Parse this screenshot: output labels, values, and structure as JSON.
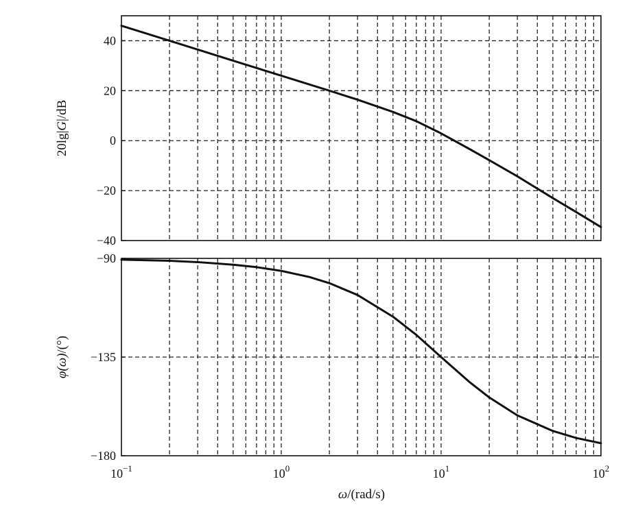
{
  "chart_data": [
    {
      "type": "line",
      "panel": "magnitude",
      "ylabel_parts": {
        "pre": "20lg|",
        "var": "G",
        "post": "|/dB"
      },
      "ylim": [
        -40,
        50
      ],
      "yticks": [
        40,
        20,
        0,
        -20,
        -40
      ],
      "ytick_labels": [
        "40",
        "20",
        "0",
        "−20",
        "−40"
      ],
      "x_scale": "log",
      "xlim": [
        0.1,
        100
      ],
      "grid": true,
      "series": [
        {
          "x": [
            0.1,
            0.2,
            0.5,
            1,
            2,
            3,
            5,
            7,
            10,
            15,
            20,
            30,
            50,
            70,
            100
          ],
          "values": [
            46,
            40,
            32,
            26,
            20,
            16.4,
            11.5,
            7.8,
            2.9,
            -3.3,
            -7.8,
            -14.3,
            -23,
            -28.6,
            -34.6
          ]
        }
      ]
    },
    {
      "type": "line",
      "panel": "phase",
      "ylabel_parts": {
        "pre": "",
        "var": "φ(ω)",
        "post": "/(°)"
      },
      "ylim": [
        -180,
        -90
      ],
      "yticks": [
        -90,
        -135,
        -180
      ],
      "ytick_labels": [
        "−90",
        "−135",
        "−180"
      ],
      "x_scale": "log",
      "xlim": [
        0.1,
        100
      ],
      "xticks": [
        0.1,
        1,
        10,
        100
      ],
      "xtick_labels": [
        {
          "base": "10",
          "exp": "−1"
        },
        {
          "base": "10",
          "exp": "0"
        },
        {
          "base": "10",
          "exp": "1"
        },
        {
          "base": "10",
          "exp": "2"
        }
      ],
      "xlabel_parts": {
        "var": "ω",
        "post": "/(rad/s)"
      },
      "grid": true,
      "series": [
        {
          "x": [
            0.1,
            0.2,
            0.3,
            0.5,
            0.7,
            1,
            1.5,
            2,
            3,
            5,
            7,
            10,
            15,
            20,
            30,
            50,
            70,
            100
          ],
          "values": [
            -90.6,
            -91.1,
            -91.7,
            -92.9,
            -94.0,
            -95.7,
            -98.5,
            -101.3,
            -106.7,
            -116.6,
            -124.9,
            -135,
            -146.3,
            -153.4,
            -161.6,
            -168.7,
            -171.9,
            -174.3
          ]
        }
      ]
    }
  ]
}
